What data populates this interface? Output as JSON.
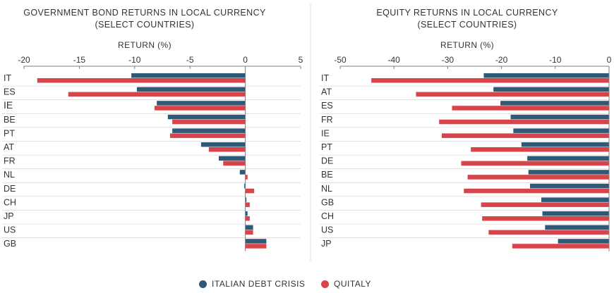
{
  "colors": {
    "series1": "#2e5a77",
    "series2": "#d9434a",
    "axis": "#7f7f7f",
    "grid": "#d9d9d9",
    "text": "#333333"
  },
  "legend": {
    "series1": "ITALIAN DEBT CRISIS",
    "series2": "QUITALY"
  },
  "chart_data": [
    {
      "type": "bar",
      "orientation": "horizontal",
      "title": "GOVERNMENT BOND RETURNS IN LOCAL CURRENCY",
      "subtitle": "(SELECT COUNTRIES)",
      "xlabel": "RETURN (%)",
      "ylabel": "",
      "xlim": [
        -20,
        5
      ],
      "ticks": [
        -20,
        -15,
        -10,
        -5,
        0,
        5
      ],
      "tick_labels": [
        "-20",
        "-15",
        "-10",
        "-5",
        "0",
        "5"
      ],
      "categories": [
        "IT",
        "ES",
        "IE",
        "BE",
        "PT",
        "AT",
        "FR",
        "NL",
        "DE",
        "CH",
        "JP",
        "US",
        "GB"
      ],
      "series": [
        {
          "name": "ITALIAN DEBT CRISIS",
          "values": [
            -10.3,
            -9.8,
            -8.0,
            -7.0,
            -6.6,
            -4.0,
            -2.4,
            -0.5,
            -0.1,
            0.1,
            0.2,
            0.7,
            1.9
          ]
        },
        {
          "name": "QUITALY",
          "values": [
            -18.8,
            -16.0,
            -8.2,
            -6.6,
            -6.8,
            -3.3,
            -2.0,
            0.2,
            0.8,
            0.4,
            0.4,
            0.7,
            1.9
          ]
        }
      ]
    },
    {
      "type": "bar",
      "orientation": "horizontal",
      "title": "EQUITY RETURNS IN LOCAL CURRENCY",
      "subtitle": "(SELECT COUNTRIES)",
      "xlabel": "RETURN (%)",
      "ylabel": "",
      "xlim": [
        -50,
        0
      ],
      "ticks": [
        -50,
        -40,
        -30,
        -20,
        -10,
        0
      ],
      "tick_labels": [
        "-50",
        "-40",
        "-30",
        "-20",
        "-10",
        "0"
      ],
      "categories": [
        "IT",
        "AT",
        "ES",
        "FR",
        "IE",
        "PT",
        "DE",
        "BE",
        "NL",
        "GB",
        "CH",
        "US",
        "JP"
      ],
      "series": [
        {
          "name": "ITALIAN DEBT CRISIS",
          "values": [
            -23.3,
            -21.5,
            -20.2,
            -18.3,
            -17.8,
            -16.3,
            -15.2,
            -15.0,
            -14.7,
            -12.6,
            -12.4,
            -11.9,
            -9.5
          ]
        },
        {
          "name": "QUITALY",
          "values": [
            -44.2,
            -35.9,
            -29.2,
            -31.6,
            -31.1,
            -25.7,
            -27.5,
            -26.3,
            -27.0,
            -23.8,
            -23.6,
            -22.4,
            -18.0
          ]
        }
      ]
    }
  ]
}
